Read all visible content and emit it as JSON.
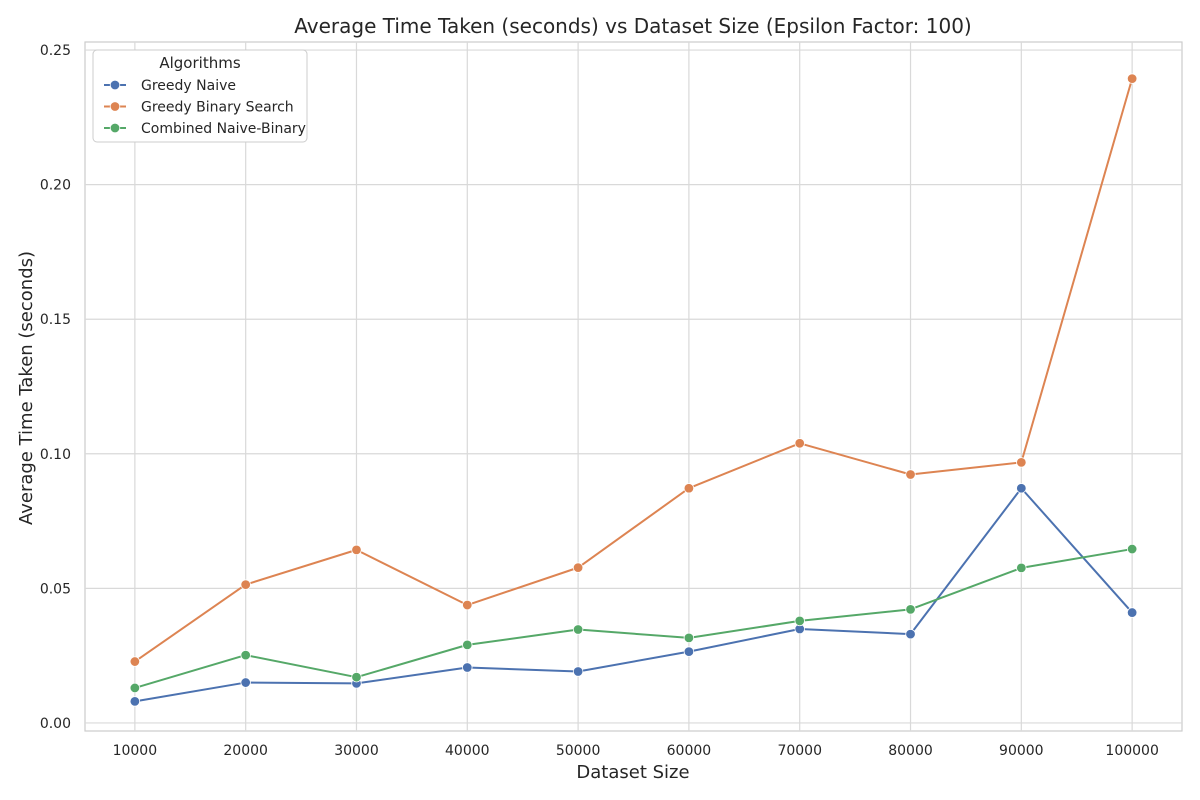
{
  "chart_data": {
    "type": "line",
    "title": "Average Time Taken (seconds) vs Dataset Size (Epsilon Factor: 100)",
    "xlabel": "Dataset Size",
    "ylabel": "Average Time Taken (seconds)",
    "x": [
      10000,
      20000,
      30000,
      40000,
      50000,
      60000,
      70000,
      80000,
      90000,
      100000
    ],
    "x_tick_labels": [
      "10000",
      "20000",
      "30000",
      "40000",
      "50000",
      "60000",
      "70000",
      "80000",
      "90000",
      "100000"
    ],
    "y_ticks": [
      0.0,
      0.05,
      0.1,
      0.15,
      0.2,
      0.25
    ],
    "y_tick_labels": [
      "0.00",
      "0.05",
      "0.10",
      "0.15",
      "0.20",
      "0.25"
    ],
    "xlim": [
      5500,
      104500
    ],
    "ylim": [
      -0.003,
      0.253
    ],
    "grid": true,
    "legend": {
      "title": "Algorithms",
      "placement": "top-left"
    },
    "series": [
      {
        "name": "Greedy Naive",
        "color": "#4c72b0",
        "marker": "circle",
        "values": [
          0.008,
          0.015,
          0.0147,
          0.0206,
          0.0191,
          0.0265,
          0.0349,
          0.033,
          0.0872,
          0.041
        ]
      },
      {
        "name": "Greedy Binary Search",
        "color": "#dd8452",
        "marker": "circle",
        "values": [
          0.0228,
          0.0514,
          0.0643,
          0.0438,
          0.0577,
          0.0872,
          0.1039,
          0.0923,
          0.0968,
          0.2394
        ]
      },
      {
        "name": "Combined Naive-Binary",
        "color": "#55a868",
        "marker": "circle",
        "values": [
          0.013,
          0.0252,
          0.017,
          0.029,
          0.0347,
          0.0316,
          0.0379,
          0.0422,
          0.0576,
          0.0646
        ]
      }
    ]
  }
}
